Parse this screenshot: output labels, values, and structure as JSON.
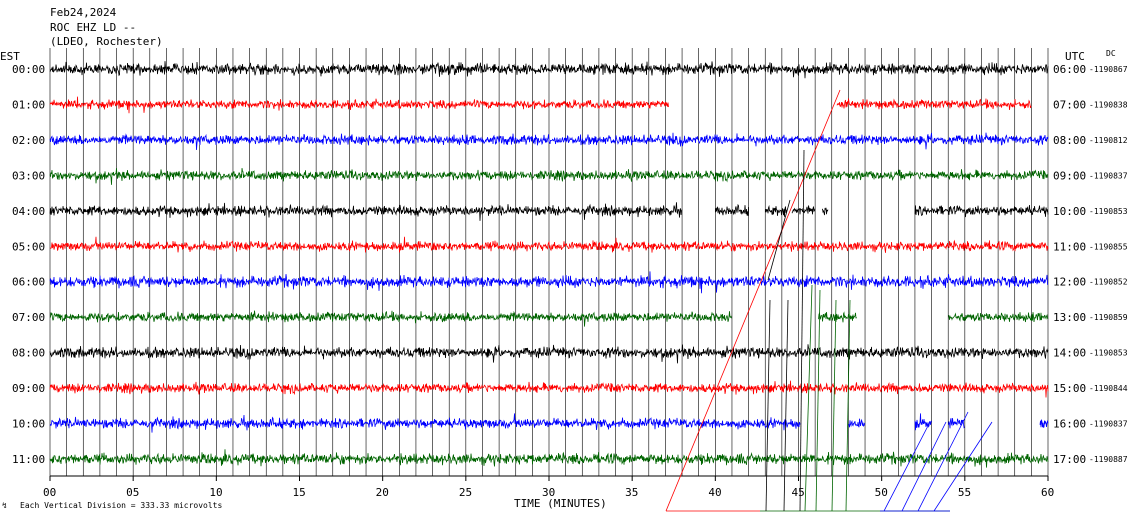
{
  "header": {
    "date": "Feb24,2024",
    "station": "ROC EHZ LD --",
    "network": "(LDEO, Rochester)"
  },
  "chart_data": {
    "type": "line",
    "title": "Feb24,2024",
    "subtitle": "ROC EHZ LD --",
    "xlabel": "TIME (MINUTES)",
    "xlim": [
      0,
      60
    ],
    "x_ticks": [
      "00",
      "05",
      "10",
      "15",
      "20",
      "25",
      "30",
      "35",
      "40",
      "45",
      "50",
      "55",
      "60"
    ],
    "left_axis_label": "EST",
    "right_axis_label": "UTC",
    "dc_label": "DC",
    "vertical_division_label": "Each Vertical Division =  333.33 microvolts",
    "grid": "vertical lines every minute",
    "colors": [
      "#000000",
      "#ff0000",
      "#0000ff",
      "#006400"
    ],
    "rows": [
      {
        "est": "00:00",
        "utc": "06:00",
        "dc": "-1190867",
        "color": "#000000",
        "amp": 0.85,
        "gaps": []
      },
      {
        "est": "01:00",
        "utc": "07:00",
        "dc": "-1190838",
        "color": "#ff0000",
        "amp": 0.65,
        "gaps": [
          [
            37.2,
            47.3
          ],
          [
            59.0,
            60
          ]
        ]
      },
      {
        "est": "02:00",
        "utc": "08:00",
        "dc": "-1190812",
        "color": "#0000ff",
        "amp": 0.75,
        "gaps": []
      },
      {
        "est": "03:00",
        "utc": "09:00",
        "dc": "-1190837",
        "color": "#006400",
        "amp": 0.7,
        "gaps": []
      },
      {
        "est": "04:00",
        "utc": "10:00",
        "dc": "-1190853",
        "color": "#000000",
        "amp": 0.75,
        "gaps": [
          [
            38.0,
            40.0
          ],
          [
            42.0,
            43.0
          ],
          [
            44.3,
            44.6
          ],
          [
            46.0,
            46.4
          ],
          [
            46.8,
            52.0
          ]
        ]
      },
      {
        "est": "05:00",
        "utc": "11:00",
        "dc": "-1190855",
        "color": "#ff0000",
        "amp": 0.7,
        "gaps": []
      },
      {
        "est": "06:00",
        "utc": "12:00",
        "dc": "-1190852",
        "color": "#0000ff",
        "amp": 0.85,
        "gaps": []
      },
      {
        "est": "07:00",
        "utc": "13:00",
        "dc": "-1190859",
        "color": "#006400",
        "amp": 0.7,
        "gaps": [
          [
            41.0,
            46.2
          ],
          [
            48.5,
            54.0
          ]
        ]
      },
      {
        "est": "08:00",
        "utc": "14:00",
        "dc": "-1190853",
        "color": "#000000",
        "amp": 0.8,
        "gaps": []
      },
      {
        "est": "09:00",
        "utc": "15:00",
        "dc": "-1190844",
        "color": "#ff0000",
        "amp": 0.7,
        "gaps": []
      },
      {
        "est": "10:00",
        "utc": "16:00",
        "dc": "-1190837",
        "color": "#0000ff",
        "amp": 0.75,
        "gaps": [
          [
            45.1,
            48.0
          ],
          [
            49.0,
            52.0
          ],
          [
            53.0,
            54.0
          ],
          [
            55.0,
            59.5
          ]
        ]
      },
      {
        "est": "11:00",
        "utc": "17:00",
        "dc": "-1190887",
        "color": "#006400",
        "amp": 0.8,
        "gaps": []
      }
    ]
  }
}
